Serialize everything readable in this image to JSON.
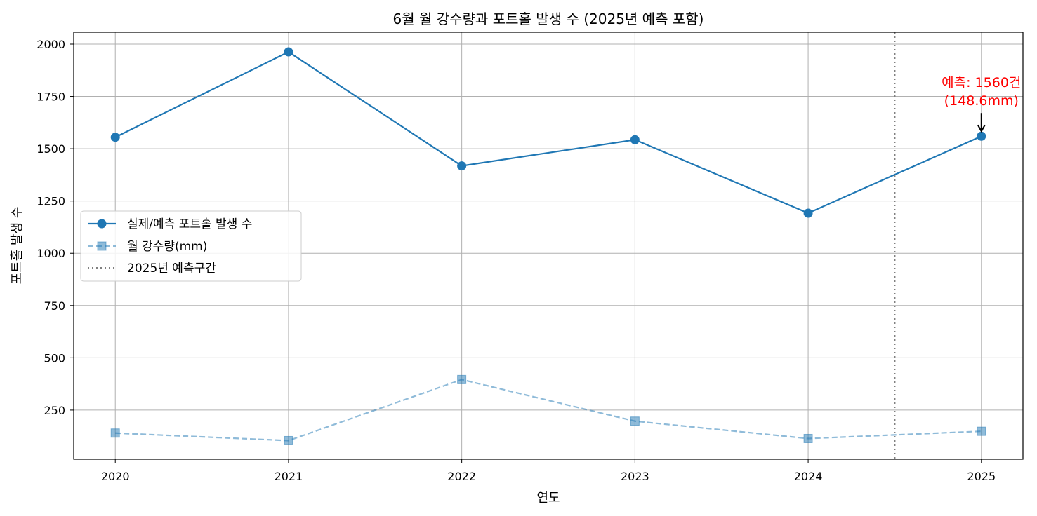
{
  "chart_data": {
    "type": "line",
    "title": "6월 월 강수량과 포트홀 발생 수 (2025년 예측 포함)",
    "xlabel": "연도",
    "ylabel": "포트홀 발생 수",
    "x": [
      2020,
      2021,
      2022,
      2023,
      2024,
      2025
    ],
    "xlim": [
      2019.76,
      2025.24
    ],
    "ylim": [
      15,
      2057
    ],
    "y_ticks": [
      250,
      500,
      750,
      1000,
      1250,
      1500,
      1750,
      2000
    ],
    "grid": true,
    "legend_position": "center-left",
    "series": [
      {
        "name": "실제/예측 포트홀 발생 수",
        "values": [
          1555,
          1963,
          1418,
          1543,
          1192,
          1560
        ],
        "color": "#1f77b4",
        "line_style": "solid",
        "marker": "circle"
      },
      {
        "name": "월 강수량(mm)",
        "values": [
          140,
          104,
          396,
          197,
          114,
          148.6
        ],
        "color": "#1f77b4",
        "opacity": 0.5,
        "line_style": "dashed",
        "marker": "square"
      }
    ],
    "forecast_line": {
      "name": "2025년 예측구간",
      "x": 2024.5,
      "color": "#808080",
      "line_style": "dotted"
    },
    "annotation": {
      "line1": "예측: 1560건",
      "line2": "(148.6mm)",
      "x": 2025,
      "y": 1560,
      "color": "#ff0000"
    }
  }
}
